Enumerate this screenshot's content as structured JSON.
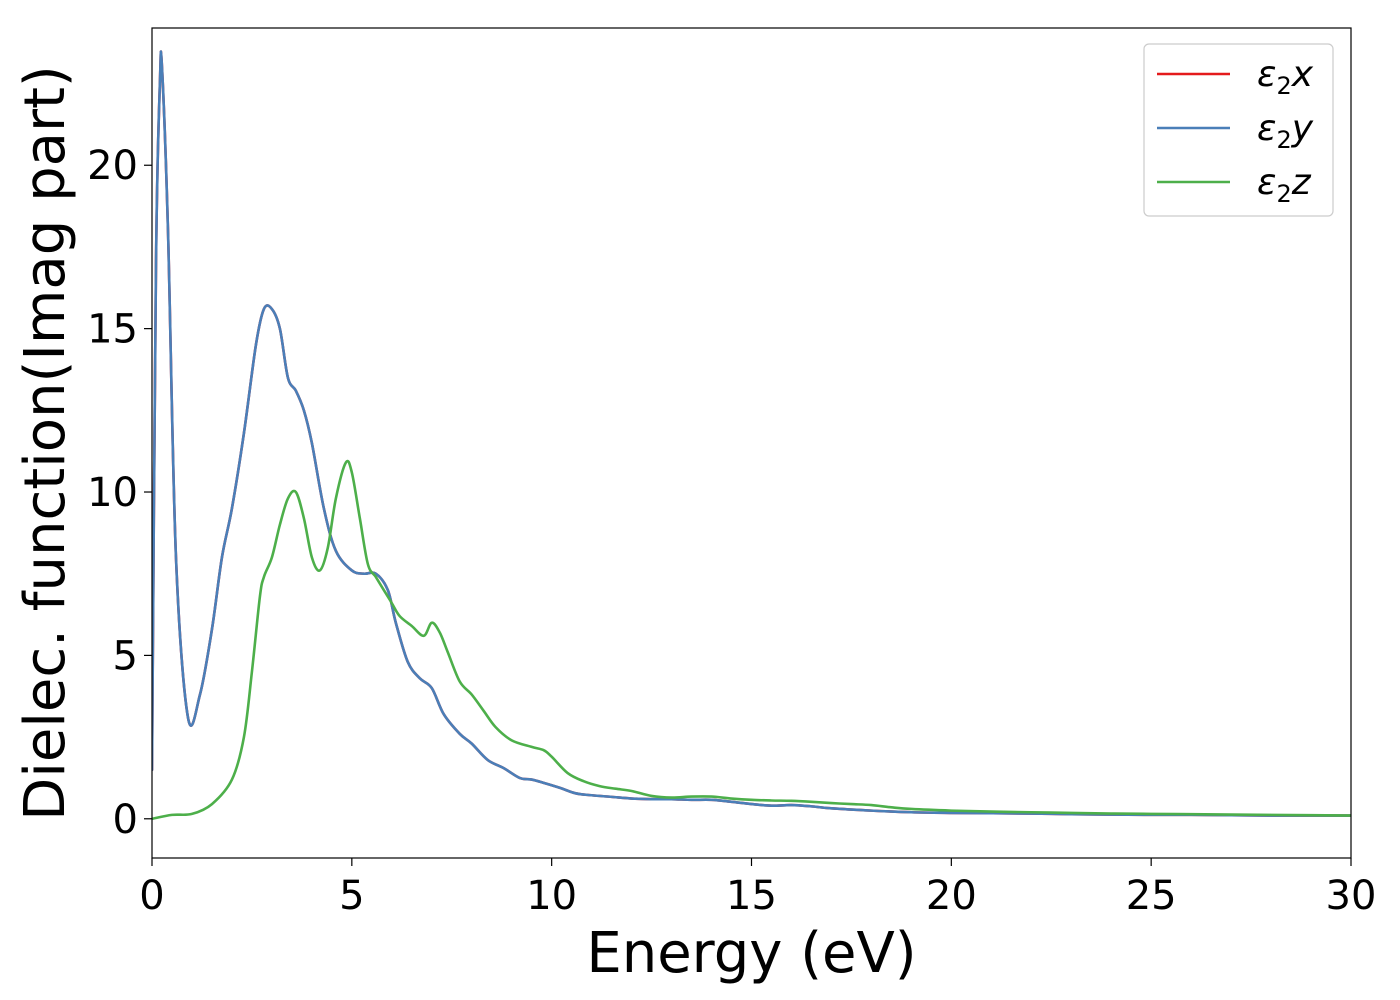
{
  "chart_data": {
    "type": "line",
    "xlabel": "Energy (eV)",
    "ylabel": "Dielec. function(Imag part)",
    "xlim": [
      0,
      30
    ],
    "ylim": [
      -1.2,
      24.2
    ],
    "xticks": [
      0,
      5,
      10,
      15,
      20,
      25,
      30
    ],
    "yticks": [
      0,
      5,
      10,
      15,
      20
    ],
    "grid": false,
    "legend_position": "top-right",
    "series": [
      {
        "name": "ε2x",
        "legend": {
          "base": "ε",
          "sub": "2",
          "suffix": "x"
        },
        "color": "#e41a1c",
        "x": [
          0.0,
          0.1,
          0.2,
          0.25,
          0.4,
          0.6,
          0.9,
          1.2,
          1.5,
          1.75,
          2.0,
          2.3,
          2.6,
          2.8,
          3.0,
          3.2,
          3.4,
          3.6,
          3.8,
          4.0,
          4.3,
          4.6,
          5.0,
          5.3,
          5.6,
          5.9,
          6.1,
          6.4,
          6.7,
          7.0,
          7.3,
          7.7,
          8.0,
          8.4,
          8.8,
          9.2,
          9.5,
          9.8,
          10.2,
          10.6,
          11.0,
          11.5,
          12.0,
          12.5,
          13.0,
          13.5,
          14.0,
          14.5,
          15.0,
          15.5,
          16.0,
          16.5,
          17.0,
          18.0,
          19.0,
          20.0,
          21.0,
          22.0,
          23.0,
          24.0,
          25.0,
          26.0,
          27.0,
          28.0,
          29.0,
          30.0
        ],
        "values": [
          1.5,
          17.0,
          22.6,
          23.0,
          18.0,
          8.0,
          3.1,
          3.8,
          5.8,
          8.0,
          9.5,
          11.8,
          14.5,
          15.6,
          15.6,
          15.0,
          13.5,
          13.1,
          12.5,
          11.5,
          9.5,
          8.2,
          7.6,
          7.5,
          7.5,
          7.0,
          6.0,
          4.8,
          4.3,
          4.0,
          3.2,
          2.6,
          2.3,
          1.8,
          1.55,
          1.25,
          1.2,
          1.1,
          0.95,
          0.78,
          0.72,
          0.67,
          0.62,
          0.6,
          0.6,
          0.58,
          0.58,
          0.52,
          0.45,
          0.4,
          0.42,
          0.38,
          0.32,
          0.25,
          0.2,
          0.18,
          0.17,
          0.16,
          0.14,
          0.13,
          0.12,
          0.12,
          0.11,
          0.1,
          0.1,
          0.1
        ]
      },
      {
        "name": "ε2y",
        "legend": {
          "base": "ε",
          "sub": "2",
          "suffix": "y"
        },
        "color": "#4a7fb8",
        "x": [
          0.0,
          0.1,
          0.2,
          0.25,
          0.4,
          0.6,
          0.9,
          1.2,
          1.5,
          1.75,
          2.0,
          2.3,
          2.6,
          2.8,
          3.0,
          3.2,
          3.4,
          3.6,
          3.8,
          4.0,
          4.3,
          4.6,
          5.0,
          5.3,
          5.6,
          5.9,
          6.1,
          6.4,
          6.7,
          7.0,
          7.3,
          7.7,
          8.0,
          8.4,
          8.8,
          9.2,
          9.5,
          9.8,
          10.2,
          10.6,
          11.0,
          11.5,
          12.0,
          12.5,
          13.0,
          13.5,
          14.0,
          14.5,
          15.0,
          15.5,
          16.0,
          16.5,
          17.0,
          18.0,
          19.0,
          20.0,
          21.0,
          22.0,
          23.0,
          24.0,
          25.0,
          26.0,
          27.0,
          28.0,
          29.0,
          30.0
        ],
        "values": [
          1.5,
          17.0,
          22.6,
          23.0,
          18.0,
          8.0,
          3.1,
          3.8,
          5.8,
          8.0,
          9.5,
          11.8,
          14.5,
          15.6,
          15.6,
          15.0,
          13.5,
          13.1,
          12.5,
          11.5,
          9.5,
          8.2,
          7.6,
          7.5,
          7.5,
          7.0,
          6.0,
          4.8,
          4.3,
          4.0,
          3.2,
          2.6,
          2.3,
          1.8,
          1.55,
          1.25,
          1.2,
          1.1,
          0.95,
          0.78,
          0.72,
          0.67,
          0.62,
          0.6,
          0.6,
          0.58,
          0.58,
          0.52,
          0.45,
          0.4,
          0.42,
          0.38,
          0.32,
          0.25,
          0.2,
          0.18,
          0.17,
          0.16,
          0.14,
          0.13,
          0.12,
          0.12,
          0.11,
          0.1,
          0.1,
          0.1
        ]
      },
      {
        "name": "ε2z",
        "legend": {
          "base": "ε",
          "sub": "2",
          "suffix": "z"
        },
        "color": "#4daf4a",
        "x": [
          0.0,
          0.5,
          1.0,
          1.5,
          2.0,
          2.3,
          2.5,
          2.7,
          2.8,
          3.0,
          3.2,
          3.4,
          3.6,
          3.8,
          4.0,
          4.2,
          4.4,
          4.6,
          4.85,
          5.0,
          5.2,
          5.4,
          5.6,
          5.8,
          6.0,
          6.2,
          6.5,
          6.8,
          7.0,
          7.2,
          7.4,
          7.7,
          8.0,
          8.3,
          8.6,
          9.0,
          9.5,
          9.8,
          10.0,
          10.4,
          10.8,
          11.2,
          11.6,
          12.0,
          12.5,
          13.0,
          13.5,
          14.0,
          14.5,
          15.0,
          15.5,
          16.0,
          16.5,
          17.0,
          17.5,
          18.0,
          18.5,
          19.0,
          20.0,
          21.0,
          22.0,
          23.0,
          24.0,
          25.0,
          26.0,
          27.0,
          28.0,
          29.0,
          30.0
        ],
        "values": [
          0.0,
          0.12,
          0.15,
          0.45,
          1.2,
          2.5,
          4.5,
          6.8,
          7.4,
          8.0,
          9.0,
          9.8,
          10.0,
          9.2,
          8.0,
          7.6,
          8.3,
          9.8,
          10.9,
          10.6,
          9.2,
          7.8,
          7.4,
          7.0,
          6.6,
          6.2,
          5.9,
          5.6,
          6.0,
          5.7,
          5.1,
          4.2,
          3.8,
          3.3,
          2.8,
          2.4,
          2.2,
          2.1,
          1.9,
          1.4,
          1.15,
          1.0,
          0.92,
          0.85,
          0.7,
          0.65,
          0.68,
          0.68,
          0.62,
          0.58,
          0.56,
          0.55,
          0.52,
          0.48,
          0.45,
          0.42,
          0.35,
          0.3,
          0.25,
          0.22,
          0.2,
          0.18,
          0.16,
          0.15,
          0.14,
          0.13,
          0.12,
          0.11,
          0.1
        ]
      }
    ]
  }
}
